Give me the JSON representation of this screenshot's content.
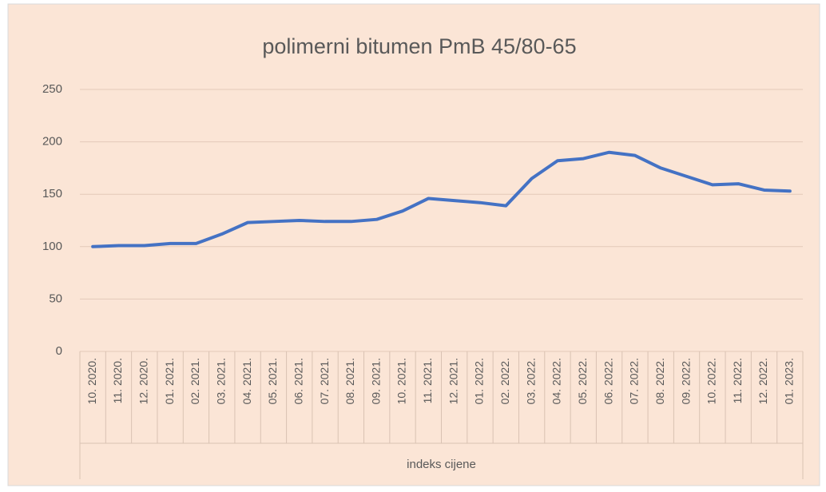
{
  "chart_data": {
    "type": "line",
    "title": "polimerni bitumen PmB 45/80-65",
    "categories": [
      "10. 2020.",
      "11. 2020.",
      "12. 2020.",
      "01. 2021.",
      "02. 2021.",
      "03. 2021.",
      "04. 2021.",
      "05. 2021.",
      "06. 2021.",
      "07. 2021.",
      "08. 2021.",
      "09. 2021.",
      "10. 2021.",
      "11. 2021.",
      "12. 2021.",
      "01. 2022.",
      "02. 2022.",
      "03. 2022.",
      "04. 2022.",
      "05. 2022.",
      "06. 2022.",
      "07. 2022.",
      "08. 2022.",
      "09. 2022.",
      "10. 2022.",
      "11. 2022.",
      "12. 2022.",
      "01. 2023."
    ],
    "series": [
      {
        "name": "indeks cijene",
        "color": "#4472c4",
        "values": [
          100,
          101,
          101,
          103,
          103,
          112,
          123,
          124,
          125,
          124,
          124,
          126,
          134,
          146,
          144,
          142,
          139,
          165,
          182,
          184,
          190,
          187,
          175,
          167,
          159,
          160,
          154,
          153
        ]
      }
    ],
    "ylim": [
      0,
      250
    ],
    "yticks": [
      0,
      50,
      100,
      150,
      200,
      250
    ],
    "grid": true
  }
}
